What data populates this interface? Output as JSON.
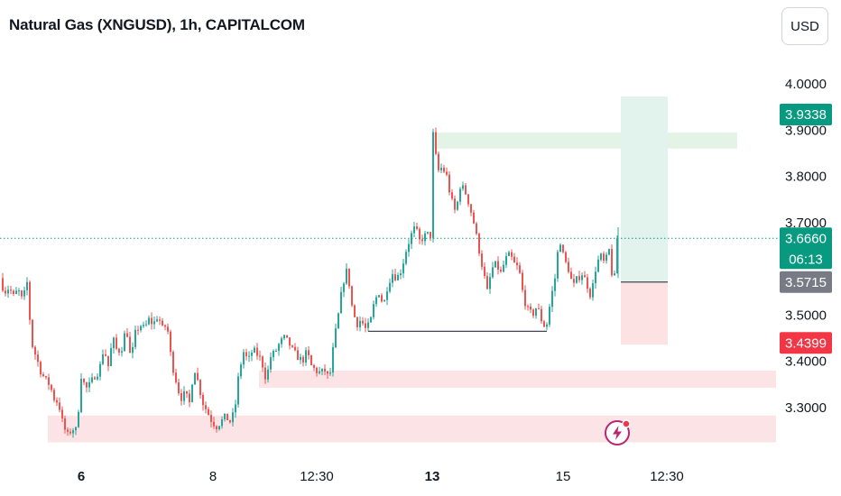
{
  "header": {
    "title": "Natural Gas (XNGUSD), 1h, CAPITALCOM",
    "currency": "USD"
  },
  "colors": {
    "up": "#26a69a",
    "down": "#ef5350",
    "target_zone": "#e1f3ec",
    "stop_zone": "#fde2e4",
    "last_price": "#089981",
    "entry": "#787b86",
    "stop": "#f23645",
    "support_zone": "#fce4e6",
    "resistance_zone": "#e3f4e6"
  },
  "chart_data": {
    "type": "candlestick",
    "symbol": "XNGUSD",
    "interval": "1h",
    "y_axis": {
      "range": [
        3.22,
        4.08
      ],
      "ticks": [
        "4.0000",
        "3.9000",
        "3.8000",
        "3.7000",
        "3.5000",
        "3.4000",
        "3.3000"
      ]
    },
    "x_axis": {
      "ticks": [
        "6",
        "8",
        "12:30",
        "13",
        "15",
        "12:30"
      ]
    },
    "price_labels": {
      "target": "3.9338",
      "last": "3.6660",
      "countdown": "06:13",
      "entry": "3.5715",
      "stop": "3.4399"
    },
    "levels": {
      "target": 3.9338,
      "last": 3.666,
      "entry": 3.5715,
      "stop": 3.4399,
      "horizontal_line": 3.465
    },
    "zones": [
      {
        "name": "support-zone-low",
        "low": 3.225,
        "high": 3.283
      },
      {
        "name": "support-zone-mid",
        "low": 3.343,
        "high": 3.38
      },
      {
        "name": "resistance-zone",
        "low": 3.86,
        "high": 3.895
      }
    ],
    "path": [
      [
        0,
        3.58
      ],
      [
        5,
        3.55
      ],
      [
        10,
        3.56
      ],
      [
        15,
        3.54
      ],
      [
        20,
        3.555
      ],
      [
        25,
        3.53
      ],
      [
        30,
        3.57
      ],
      [
        35,
        3.44
      ],
      [
        40,
        3.41
      ],
      [
        45,
        3.38
      ],
      [
        50,
        3.36
      ],
      [
        55,
        3.35
      ],
      [
        60,
        3.32
      ],
      [
        65,
        3.31
      ],
      [
        70,
        3.26
      ],
      [
        75,
        3.24
      ],
      [
        80,
        3.255
      ],
      [
        85,
        3.25
      ],
      [
        90,
        3.37
      ],
      [
        95,
        3.34
      ],
      [
        100,
        3.35
      ],
      [
        105,
        3.37
      ],
      [
        110,
        3.38
      ],
      [
        115,
        3.43
      ],
      [
        120,
        3.39
      ],
      [
        125,
        3.45
      ],
      [
        130,
        3.42
      ],
      [
        135,
        3.43
      ],
      [
        140,
        3.475
      ],
      [
        145,
        3.4
      ],
      [
        150,
        3.46
      ],
      [
        155,
        3.48
      ],
      [
        160,
        3.47
      ],
      [
        165,
        3.49
      ],
      [
        170,
        3.48
      ],
      [
        175,
        3.5
      ],
      [
        180,
        3.47
      ],
      [
        185,
        3.48
      ],
      [
        190,
        3.4
      ],
      [
        195,
        3.36
      ],
      [
        200,
        3.32
      ],
      [
        205,
        3.33
      ],
      [
        210,
        3.31
      ],
      [
        215,
        3.39
      ],
      [
        220,
        3.35
      ],
      [
        225,
        3.31
      ],
      [
        230,
        3.29
      ],
      [
        235,
        3.27
      ],
      [
        240,
        3.26
      ],
      [
        245,
        3.27
      ],
      [
        250,
        3.28
      ],
      [
        255,
        3.27
      ],
      [
        260,
        3.29
      ],
      [
        265,
        3.38
      ],
      [
        270,
        3.42
      ],
      [
        275,
        3.4
      ],
      [
        280,
        3.425
      ],
      [
        285,
        3.415
      ],
      [
        290,
        3.4
      ],
      [
        295,
        3.36
      ],
      [
        300,
        3.41
      ],
      [
        305,
        3.42
      ],
      [
        310,
        3.44
      ],
      [
        315,
        3.45
      ],
      [
        320,
        3.44
      ],
      [
        325,
        3.42
      ],
      [
        330,
        3.41
      ],
      [
        335,
        3.4
      ],
      [
        340,
        3.42
      ],
      [
        345,
        3.39
      ],
      [
        350,
        3.38
      ],
      [
        355,
        3.375
      ],
      [
        360,
        3.38
      ],
      [
        365,
        3.36
      ],
      [
        370,
        3.44
      ],
      [
        375,
        3.5
      ],
      [
        380,
        3.57
      ],
      [
        385,
        3.6
      ],
      [
        390,
        3.52
      ],
      [
        395,
        3.48
      ],
      [
        400,
        3.49
      ],
      [
        405,
        3.47
      ],
      [
        410,
        3.48
      ],
      [
        415,
        3.53
      ],
      [
        420,
        3.55
      ],
      [
        425,
        3.52
      ],
      [
        430,
        3.57
      ],
      [
        435,
        3.59
      ],
      [
        440,
        3.58
      ],
      [
        445,
        3.6
      ],
      [
        450,
        3.64
      ],
      [
        455,
        3.67
      ],
      [
        460,
        3.69
      ],
      [
        465,
        3.66
      ],
      [
        470,
        3.67
      ],
      [
        475,
        3.675
      ],
      [
        479,
        3.67
      ],
      [
        480,
        3.89
      ],
      [
        485,
        3.81
      ],
      [
        490,
        3.82
      ],
      [
        495,
        3.8
      ],
      [
        500,
        3.75
      ],
      [
        505,
        3.72
      ],
      [
        510,
        3.78
      ],
      [
        515,
        3.77
      ],
      [
        520,
        3.74
      ],
      [
        525,
        3.7
      ],
      [
        530,
        3.65
      ],
      [
        535,
        3.6
      ],
      [
        540,
        3.55
      ],
      [
        545,
        3.6
      ],
      [
        550,
        3.61
      ],
      [
        555,
        3.59
      ],
      [
        560,
        3.62
      ],
      [
        565,
        3.63
      ],
      [
        570,
        3.61
      ],
      [
        575,
        3.6
      ],
      [
        580,
        3.54
      ],
      [
        585,
        3.51
      ],
      [
        590,
        3.5
      ],
      [
        595,
        3.52
      ],
      [
        600,
        3.49
      ],
      [
        605,
        3.47
      ],
      [
        610,
        3.53
      ],
      [
        615,
        3.58
      ],
      [
        620,
        3.67
      ],
      [
        625,
        3.62
      ],
      [
        630,
        3.6
      ],
      [
        635,
        3.56
      ],
      [
        640,
        3.58
      ],
      [
        645,
        3.59
      ],
      [
        650,
        3.57
      ],
      [
        655,
        3.54
      ],
      [
        660,
        3.6
      ],
      [
        665,
        3.63
      ],
      [
        670,
        3.61
      ],
      [
        675,
        3.64
      ],
      [
        680,
        3.56
      ],
      [
        685,
        3.666
      ]
    ]
  }
}
